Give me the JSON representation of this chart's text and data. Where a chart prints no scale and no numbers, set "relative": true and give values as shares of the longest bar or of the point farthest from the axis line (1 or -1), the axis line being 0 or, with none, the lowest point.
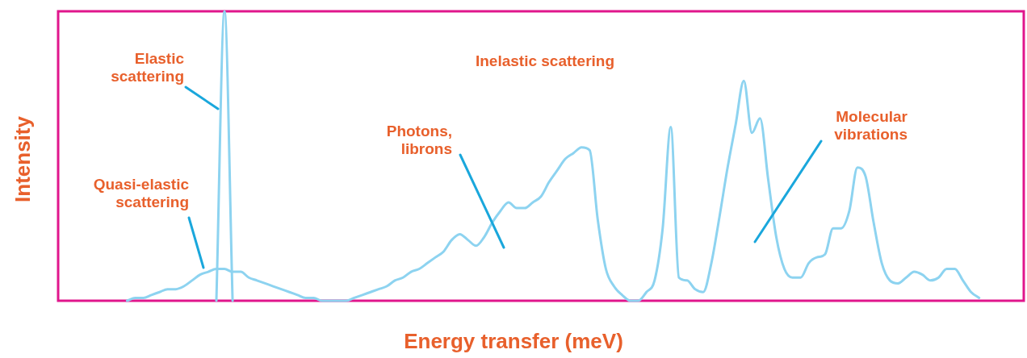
{
  "chart_data": {
    "type": "line",
    "relative": true,
    "xlabel": "Energy transfer (meV)",
    "ylabel": "Intensity",
    "categories": [
      null,
      null,
      null,
      null,
      null,
      null,
      null,
      null,
      null,
      null,
      null,
      null,
      null,
      null,
      null,
      null,
      null,
      null,
      null,
      null,
      null,
      null,
      null,
      null,
      null,
      null,
      null,
      null,
      null,
      null,
      null,
      null,
      null,
      null,
      null,
      null,
      null,
      null,
      null,
      null,
      null,
      null,
      null,
      null,
      null,
      null,
      null,
      null,
      null,
      null,
      null,
      null,
      null,
      null,
      null,
      null,
      null,
      null,
      null,
      null,
      null,
      null,
      null,
      null,
      null,
      null,
      null,
      null,
      null,
      null,
      null,
      null,
      null,
      null,
      null,
      null,
      null,
      null,
      null,
      null,
      null,
      null,
      null,
      null,
      null,
      null,
      null,
      null,
      null,
      null,
      null,
      null,
      null,
      null,
      null,
      null,
      null,
      null,
      null,
      null,
      null,
      null,
      null,
      null,
      null,
      null,
      null,
      null,
      null,
      null,
      null,
      null,
      null,
      null,
      null,
      null,
      null,
      null,
      null
    ],
    "series": [
      {
        "color": "#8dd3f0",
        "values": [
          null,
          null,
          null,
          null,
          null,
          null,
          null,
          null,
          0,
          0.01,
          0.01,
          0.02,
          0.03,
          0.04,
          0.04,
          0.05,
          0.07,
          0.09,
          0.1,
          0.11,
          0.11,
          0.1,
          0.1,
          0.08,
          0.07,
          0.06,
          0.05,
          0.04,
          0.03,
          0.02,
          0.01,
          0.01,
          0,
          0,
          0,
          0,
          0.01,
          0.02,
          0.03,
          0.04,
          0.05,
          0.07,
          0.08,
          0.1,
          0.11,
          0.13,
          0.15,
          0.17,
          0.21,
          0.23,
          0.21,
          0.19,
          0.22,
          0.27,
          0.31,
          0.34,
          0.32,
          0.32,
          0.34,
          0.36,
          0.41,
          0.45,
          0.49,
          0.51,
          0.53,
          0.52,
          0.28,
          0.11,
          0.05,
          0.02,
          0,
          0,
          0.03,
          0.07,
          0.25,
          0.6,
          0.08,
          0.07,
          0.04,
          0.03,
          0.13,
          0.29,
          0.46,
          0.61,
          0.76,
          0.58,
          0.63,
          0.42,
          0.22,
          0.11,
          0.08,
          0.08,
          0.13,
          0.15,
          0.16,
          0.25,
          0.25,
          0.31,
          0.46,
          0.43,
          0.27,
          0.13,
          0.07,
          0.06,
          0.08,
          0.1,
          0.09,
          0.07,
          0.08,
          0.11,
          0.11,
          0.07,
          0.03,
          0.01,
          null,
          null,
          null,
          null,
          null
        ]
      },
      {
        "color": "#8dd3f0",
        "values": [
          null,
          null,
          null,
          null,
          null,
          null,
          null,
          null,
          null,
          null,
          null,
          null,
          null,
          null,
          null,
          null,
          null,
          null,
          null,
          0,
          1,
          0,
          null,
          null,
          null,
          null,
          null,
          null,
          null,
          null,
          null,
          null,
          null,
          null,
          null,
          null,
          null,
          null,
          null,
          null,
          null,
          null,
          null,
          null,
          null,
          null,
          null,
          null,
          null,
          null,
          null,
          null,
          null,
          null,
          null,
          null,
          null,
          null,
          null,
          null,
          null,
          null,
          null,
          null,
          null,
          null,
          null,
          null,
          null,
          null,
          null,
          null,
          null,
          null,
          null,
          null,
          null,
          null,
          null,
          null,
          null,
          null,
          null,
          null,
          null,
          null,
          null,
          null,
          null,
          null,
          null,
          null,
          null,
          null,
          null,
          null,
          null,
          null,
          null,
          null,
          null,
          null,
          null,
          null,
          null,
          null,
          null,
          null,
          null,
          null,
          null,
          null,
          null,
          null,
          null,
          null,
          null,
          null,
          null
        ]
      }
    ],
    "annotations": [
      "Elastic scattering",
      "Quasi-elastic scattering",
      "Inelastic scattering",
      "Photons, librons",
      "Molecular vibrations"
    ]
  }
}
